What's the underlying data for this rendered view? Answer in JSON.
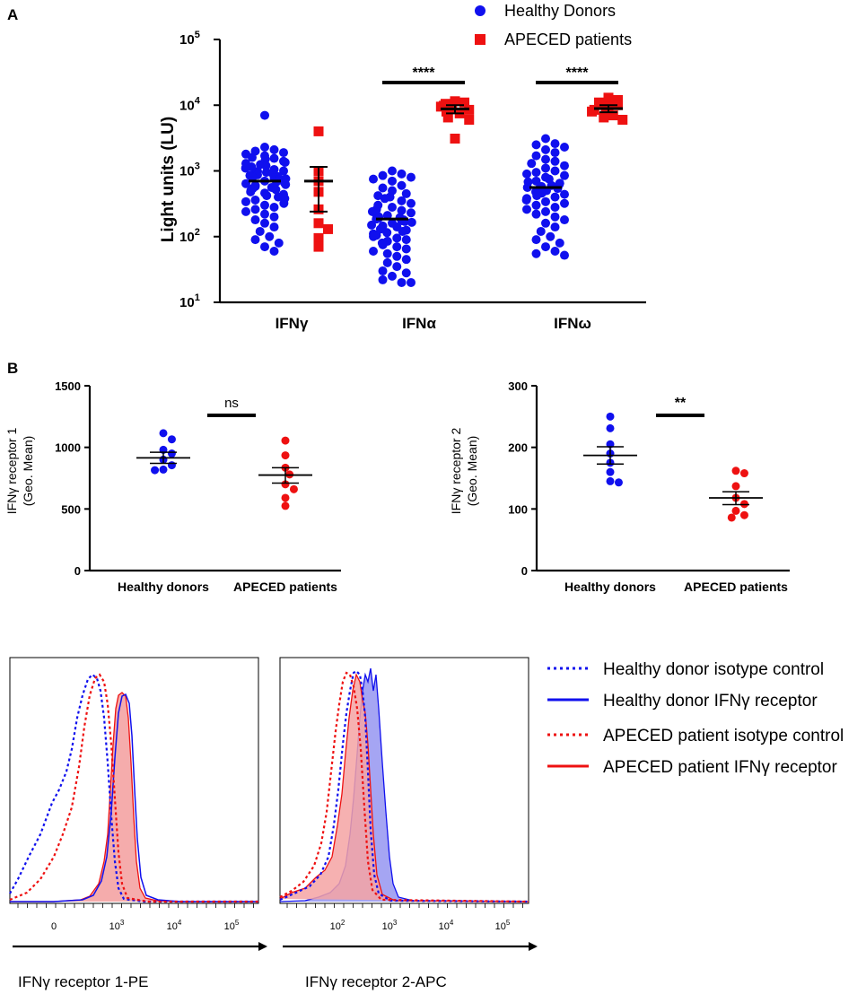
{
  "colors": {
    "healthy": "#1010ee",
    "apeced": "#ee1111",
    "axis": "#000000"
  },
  "chart_data": [
    {
      "panel": "A",
      "type": "scatter",
      "yscale": "log",
      "ylabel": "Light units (LU)",
      "ylim": [
        10,
        100000
      ],
      "yticks": [
        {
          "base": "10",
          "exp": "1",
          "value": 10
        },
        {
          "base": "10",
          "exp": "2",
          "value": 100
        },
        {
          "base": "10",
          "exp": "3",
          "value": 1000
        },
        {
          "base": "10",
          "exp": "4",
          "value": 10000
        },
        {
          "base": "10",
          "exp": "5",
          "value": 100000
        }
      ],
      "categories": [
        "IFNγ",
        "IFNα",
        "IFNω"
      ],
      "legend": [
        "Healthy Donors",
        "APECED patients"
      ],
      "significance": [
        {
          "category": "IFNα",
          "label": "****"
        },
        {
          "category": "IFNω",
          "label": "****"
        }
      ],
      "series": [
        {
          "name": "Healthy Donors",
          "marker": "circle",
          "groups": [
            {
              "category": "IFNγ",
              "mean": 700,
              "values": [
                7000,
                2300,
                2100,
                2000,
                1900,
                1800,
                1700,
                1600,
                1550,
                1500,
                1400,
                1350,
                1300,
                1250,
                1200,
                1150,
                1100,
                1050,
                1000,
                980,
                950,
                920,
                900,
                870,
                850,
                820,
                800,
                780,
                760,
                740,
                720,
                700,
                680,
                660,
                640,
                620,
                600,
                580,
                560,
                540,
                520,
                500,
                480,
                460,
                440,
                420,
                400,
                380,
                360,
                340,
                320,
                300,
                280,
                260,
                240,
                220,
                200,
                180,
                160,
                140,
                120,
                100,
                90,
                80,
                70,
                60
              ]
            },
            {
              "category": "IFNα",
              "mean": 185,
              "values": [
                1000,
                900,
                850,
                800,
                750,
                700,
                600,
                550,
                500,
                450,
                420,
                400,
                380,
                350,
                320,
                300,
                280,
                260,
                250,
                240,
                230,
                220,
                210,
                200,
                195,
                190,
                185,
                180,
                175,
                170,
                165,
                160,
                150,
                145,
                140,
                130,
                125,
                120,
                115,
                110,
                105,
                100,
                95,
                90,
                85,
                80,
                75,
                70,
                65,
                60,
                55,
                50,
                45,
                40,
                35,
                30,
                28,
                25,
                22,
                20,
                20
              ]
            },
            {
              "category": "IFNω",
              "mean": 560,
              "values": [
                3100,
                2600,
                2500,
                2300,
                2100,
                1900,
                1700,
                1500,
                1400,
                1300,
                1200,
                1100,
                1000,
                950,
                900,
                850,
                800,
                750,
                700,
                680,
                650,
                620,
                600,
                580,
                560,
                540,
                520,
                500,
                480,
                460,
                440,
                420,
                400,
                380,
                360,
                340,
                320,
                300,
                280,
                260,
                240,
                220,
                200,
                180,
                160,
                140,
                120,
                100,
                90,
                80,
                70,
                60,
                55,
                52
              ]
            }
          ]
        },
        {
          "name": "APECED patients",
          "marker": "square",
          "groups": [
            {
              "category": "IFNγ",
              "mean": 700,
              "error": [
                240,
                1150
              ],
              "values": [
                4000,
                1000,
                700,
                480,
                260,
                160,
                130,
                95,
                70
              ]
            },
            {
              "category": "IFNα",
              "mean": 8800,
              "error": [
                7500,
                10000
              ],
              "values": [
                11500,
                11000,
                10500,
                9800,
                9500,
                9000,
                8500,
                8000,
                7500,
                6500,
                6000,
                3100
              ]
            },
            {
              "category": "IFNω",
              "mean": 8900,
              "error": [
                7800,
                10000
              ],
              "values": [
                13000,
                12000,
                11000,
                10000,
                9500,
                9000,
                8500,
                8000,
                7000,
                6500,
                6000
              ]
            }
          ]
        }
      ]
    },
    {
      "panel": "B",
      "type": "scatter",
      "ylabel": "IFNγ receptor 1",
      "ylabel2": "(Geo. Mean)",
      "ylim": [
        0,
        1500
      ],
      "yticks": [
        "0",
        "500",
        "1000",
        "1500"
      ],
      "categories": [
        "Healthy donors",
        "APECED patients"
      ],
      "significance": {
        "label": "ns"
      },
      "series": [
        {
          "name": "Healthy donors",
          "mean": 915,
          "error": [
            870,
            960
          ],
          "values": [
            1115,
            1065,
            980,
            950,
            900,
            855,
            820,
            815
          ]
        },
        {
          "name": "APECED patients",
          "mean": 775,
          "error": [
            710,
            835
          ],
          "values": [
            1055,
            935,
            835,
            780,
            700,
            660,
            590,
            525
          ]
        }
      ]
    },
    {
      "panel": "B2",
      "type": "scatter",
      "ylabel": "IFNγ receptor 2",
      "ylabel2": "(Geo. Mean)",
      "ylim": [
        0,
        300
      ],
      "yticks": [
        "0",
        "100",
        "200",
        "300"
      ],
      "categories": [
        "Healthy donors",
        "APECED patients"
      ],
      "significance": {
        "label": "**"
      },
      "series": [
        {
          "name": "Healthy donors",
          "mean": 187,
          "error": [
            173,
            201
          ],
          "values": [
            250,
            231,
            205,
            190,
            175,
            160,
            145,
            143
          ]
        },
        {
          "name": "APECED patients",
          "mean": 118,
          "error": [
            107,
            128
          ],
          "values": [
            162,
            158,
            137,
            118,
            108,
            97,
            90,
            86
          ]
        }
      ]
    },
    {
      "panel": "flow",
      "type": "area",
      "legend": [
        "Healthy donor isotype control",
        "Healthy donor IFNγ receptor",
        "APECED patient isotype control",
        "APECED patient IFNγ receptor"
      ],
      "plots": [
        {
          "xlabel": "IFNγ receptor 1-PE",
          "xticks": [
            {
              "base": "0",
              "exp": ""
            },
            {
              "base": "10",
              "exp": "3"
            },
            {
              "base": "10",
              "exp": "4"
            },
            {
              "base": "10",
              "exp": "5"
            }
          ]
        },
        {
          "xlabel": "IFNγ receptor 2-APC",
          "xticks": [
            {
              "base": "10",
              "exp": "2"
            },
            {
              "base": "10",
              "exp": "3"
            },
            {
              "base": "10",
              "exp": "4"
            },
            {
              "base": "10",
              "exp": "5"
            }
          ]
        }
      ]
    }
  ],
  "panel_labels": {
    "a": "A",
    "b": "B"
  }
}
